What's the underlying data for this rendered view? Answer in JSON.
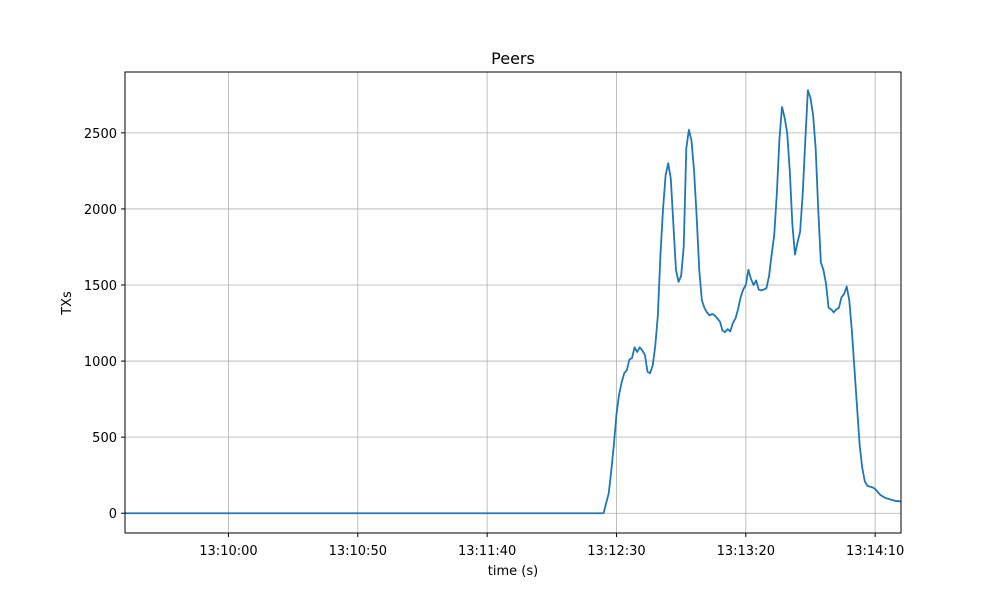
{
  "chart_data": {
    "type": "line",
    "title": "Peers",
    "xlabel": "time (s)",
    "ylabel": "TXs",
    "x_tick_labels": [
      "13:10:00",
      "13:10:50",
      "13:11:40",
      "13:12:30",
      "13:13:20",
      "13:14:10"
    ],
    "y_ticks": [
      0,
      500,
      1000,
      1500,
      2000,
      2500
    ],
    "xlim": [
      "13:09:20",
      "13:14:20"
    ],
    "ylim": [
      -130,
      2900
    ],
    "grid": true,
    "legend": "none",
    "line_color": "#1f77b4",
    "x_times": [
      "13:09:20",
      "13:12:25",
      "13:12:27",
      "13:12:28",
      "13:12:29",
      "13:12:30",
      "13:12:31",
      "13:12:32",
      "13:12:33",
      "13:12:34",
      "13:12:35",
      "13:12:36",
      "13:12:37",
      "13:12:38",
      "13:12:39",
      "13:12:40",
      "13:12:41",
      "13:12:42",
      "13:12:43",
      "13:12:44",
      "13:12:45",
      "13:12:46",
      "13:12:47",
      "13:12:48",
      "13:12:49",
      "13:12:50",
      "13:12:51",
      "13:12:52",
      "13:12:53",
      "13:12:54",
      "13:12:55",
      "13:12:56",
      "13:12:57",
      "13:12:58",
      "13:12:59",
      "13:13:00",
      "13:13:01",
      "13:13:02",
      "13:13:03",
      "13:13:04",
      "13:13:05",
      "13:13:06",
      "13:13:07",
      "13:13:08",
      "13:13:09",
      "13:13:10",
      "13:13:11",
      "13:13:12",
      "13:13:13",
      "13:13:14",
      "13:13:15",
      "13:13:16",
      "13:13:17",
      "13:13:18",
      "13:13:19",
      "13:13:20",
      "13:13:21",
      "13:13:22",
      "13:13:23",
      "13:13:24",
      "13:13:25",
      "13:13:26",
      "13:13:27",
      "13:13:28",
      "13:13:29",
      "13:13:30",
      "13:13:31",
      "13:13:32",
      "13:13:33",
      "13:13:34",
      "13:13:35",
      "13:13:36",
      "13:13:37",
      "13:13:38",
      "13:13:39",
      "13:13:40",
      "13:13:41",
      "13:13:42",
      "13:13:43",
      "13:13:44",
      "13:13:45",
      "13:13:46",
      "13:13:47",
      "13:13:48",
      "13:13:49",
      "13:13:50",
      "13:13:51",
      "13:13:52",
      "13:13:53",
      "13:13:54",
      "13:13:55",
      "13:13:56",
      "13:13:57",
      "13:13:58",
      "13:13:59",
      "13:14:00",
      "13:14:01",
      "13:14:02",
      "13:14:03",
      "13:14:04",
      "13:14:05",
      "13:14:06",
      "13:14:07",
      "13:14:08",
      "13:14:09",
      "13:14:10",
      "13:14:11",
      "13:14:12",
      "13:14:13",
      "13:14:14",
      "13:14:15",
      "13:14:16",
      "13:14:17",
      "13:14:18",
      "13:14:19",
      "13:14:20"
    ],
    "y": [
      0,
      0,
      130,
      280,
      450,
      650,
      780,
      860,
      920,
      940,
      1010,
      1020,
      1090,
      1060,
      1090,
      1070,
      1040,
      930,
      920,
      970,
      1100,
      1300,
      1700,
      2000,
      2220,
      2300,
      2200,
      1900,
      1600,
      1520,
      1560,
      1750,
      2400,
      2520,
      2450,
      2250,
      1950,
      1600,
      1400,
      1350,
      1320,
      1300,
      1310,
      1300,
      1280,
      1260,
      1200,
      1190,
      1210,
      1195,
      1250,
      1280,
      1340,
      1420,
      1470,
      1500,
      1600,
      1540,
      1500,
      1530,
      1470,
      1465,
      1470,
      1480,
      1560,
      1700,
      1830,
      2100,
      2460,
      2670,
      2600,
      2500,
      2250,
      1900,
      1700,
      1780,
      1850,
      2100,
      2450,
      2780,
      2730,
      2620,
      2400,
      2000,
      1650,
      1600,
      1510,
      1350,
      1340,
      1320,
      1340,
      1350,
      1420,
      1440,
      1490,
      1400,
      1200,
      950,
      700,
      450,
      300,
      210,
      180,
      175,
      170,
      160,
      140,
      120,
      110,
      100,
      95,
      90,
      85,
      80,
      80,
      75
    ]
  }
}
